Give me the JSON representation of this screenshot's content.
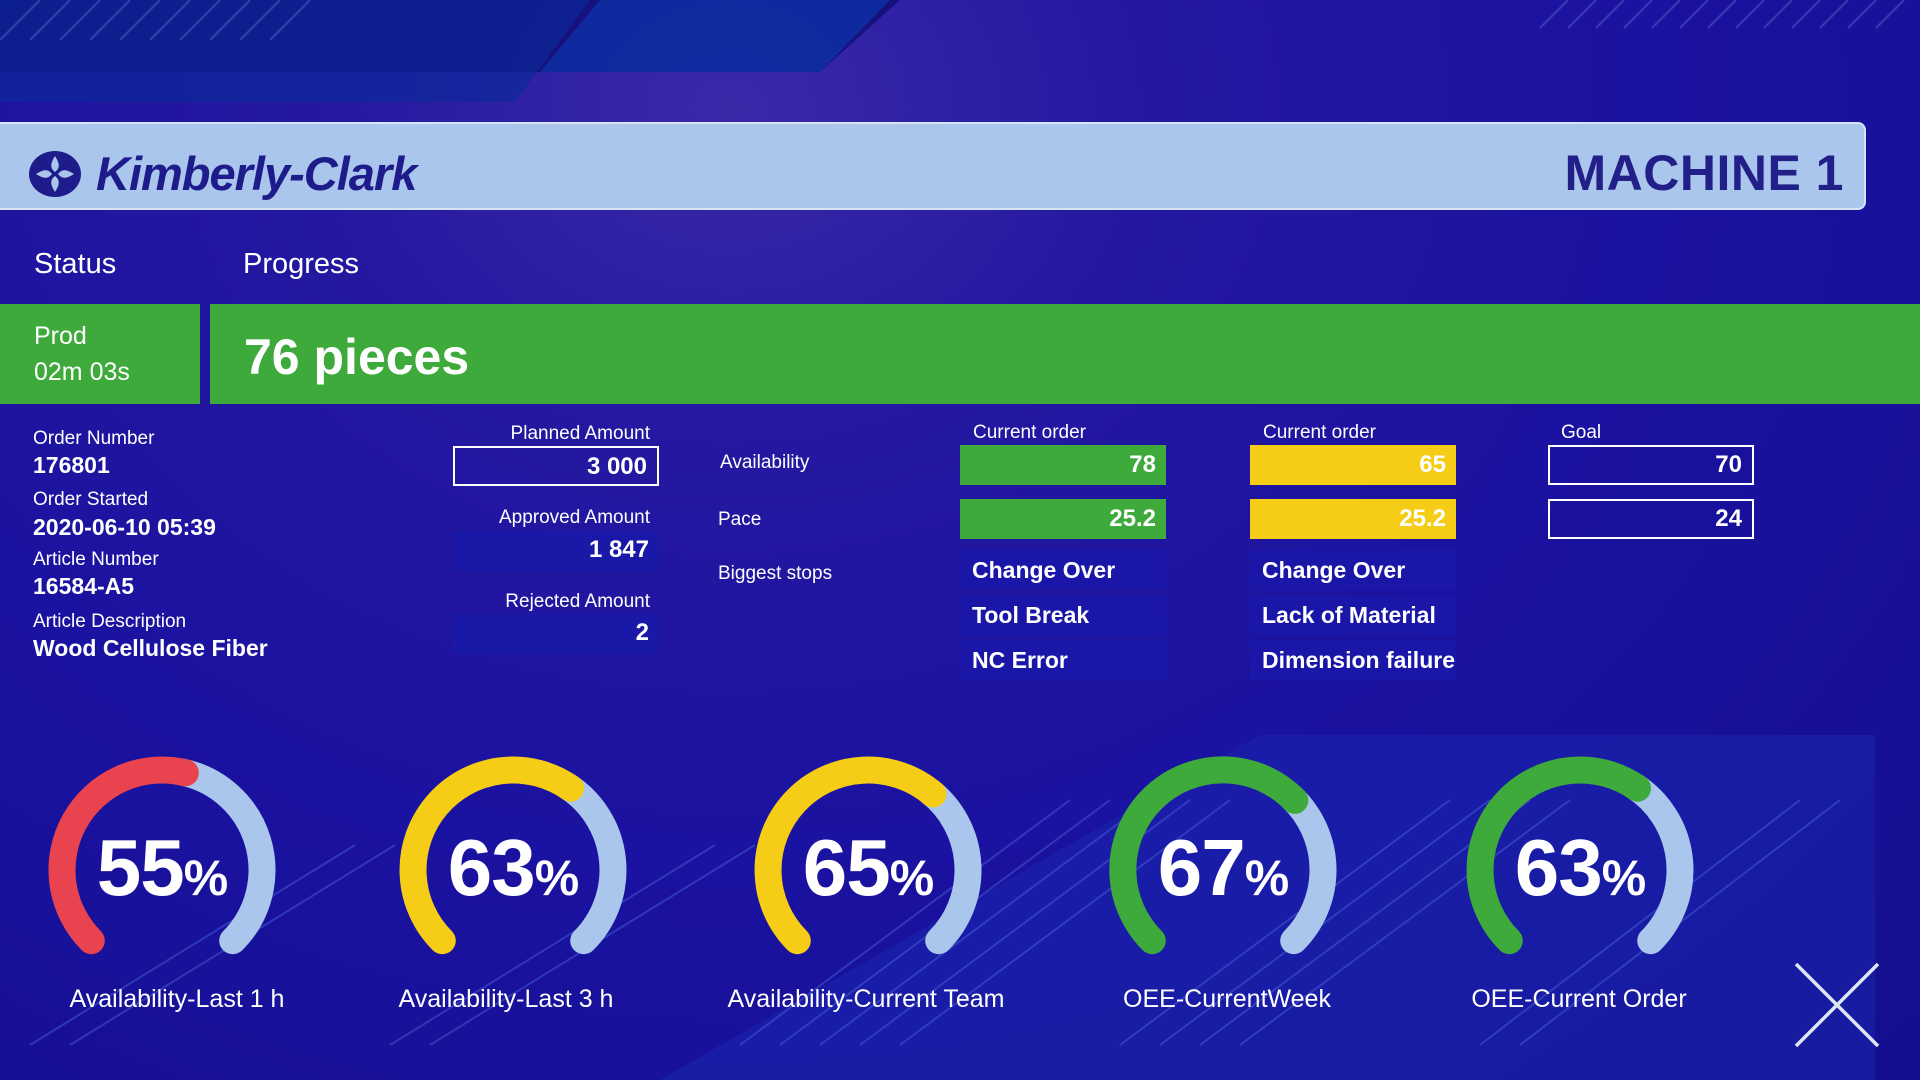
{
  "header": {
    "brand": "Kimberly-Clark",
    "machine_title": "MACHINE 1"
  },
  "tabs": {
    "status": "Status",
    "progress": "Progress"
  },
  "status": {
    "state": "Prod",
    "duration": "02m 03s"
  },
  "progress": {
    "text": "76 pieces"
  },
  "order_info": {
    "order_number_label": "Order Number",
    "order_number": "176801",
    "order_started_label": "Order Started",
    "order_started": "2020-06-10  05:39",
    "article_number_label": "Article Number",
    "article_number": "16584-A5",
    "article_description_label": "Article Description",
    "article_description": "Wood Cellulose Fiber"
  },
  "amounts": {
    "planned_label": "Planned Amount",
    "planned": "3 000",
    "approved_label": "Approved Amount",
    "approved": "1 847",
    "rejected_label": "Rejected Amount",
    "rejected": "2"
  },
  "metrics": {
    "row_labels": {
      "availability": "Availability",
      "pace": "Pace",
      "biggest_stops": "Biggest stops"
    },
    "col1": {
      "header": "Current order",
      "availability": "78",
      "pace": "25.2",
      "stops": [
        "Change Over",
        "Tool Break",
        "NC Error"
      ]
    },
    "col2": {
      "header": "Current order",
      "availability": "65",
      "pace": "25.2",
      "stops": [
        "Change Over",
        "Lack of Material",
        "Dimension failure"
      ]
    },
    "goal": {
      "header": "Goal",
      "availability": "70",
      "pace": "24"
    }
  },
  "gauges": [
    {
      "value": "55",
      "unit": "%",
      "fraction": 0.55,
      "color": "#e8434e",
      "label": "Availability-Last 1 h"
    },
    {
      "value": "63",
      "unit": "%",
      "fraction": 0.63,
      "color": "#f5cd16",
      "label": "Availability-Last 3 h"
    },
    {
      "value": "65",
      "unit": "%",
      "fraction": 0.65,
      "color": "#f5cd16",
      "label": "Availability-Current Team"
    },
    {
      "value": "67",
      "unit": "%",
      "fraction": 0.67,
      "color": "#3faa3c",
      "label": "OEE-CurrentWeek"
    },
    {
      "value": "63",
      "unit": "%",
      "fraction": 0.63,
      "color": "#3faa3c",
      "label": "OEE-Current Order"
    }
  ],
  "colors": {
    "green": "#3faa3c",
    "yellow": "#f5cd16",
    "red": "#e8434e",
    "track": "#aac6ec",
    "header_bg": "#aac6ec",
    "brand_text": "#1e1b8a"
  }
}
